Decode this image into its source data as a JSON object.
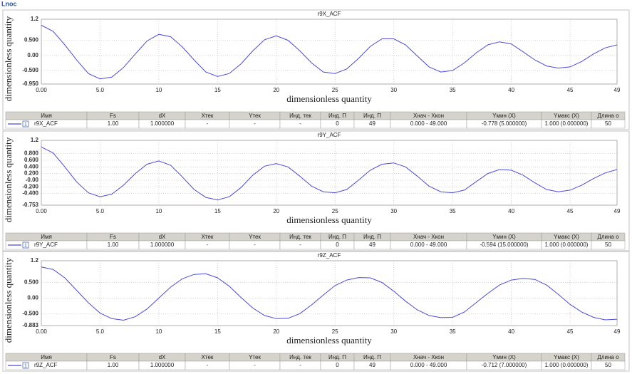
{
  "window_title": "Lnoc",
  "panels": [
    {
      "chart": {
        "type": "line",
        "title": "r9X_ACF",
        "xlabel": "dimensionless quantity",
        "ylabel": "dimensionless quantity",
        "color": "#4b4bd6",
        "grid": true,
        "x": [
          0,
          1,
          2,
          3,
          4,
          5,
          6,
          7,
          8,
          9,
          10,
          11,
          12,
          13,
          14,
          15,
          16,
          17,
          18,
          19,
          20,
          21,
          22,
          23,
          24,
          25,
          26,
          27,
          28,
          29,
          30,
          31,
          32,
          33,
          34,
          35,
          36,
          37,
          38,
          39,
          40,
          41,
          42,
          43,
          44,
          45,
          46,
          47,
          48,
          49
        ],
        "values": [
          1.0,
          0.8,
          0.35,
          -0.15,
          -0.6,
          -0.778,
          -0.72,
          -0.4,
          0.05,
          0.48,
          0.7,
          0.62,
          0.28,
          -0.15,
          -0.55,
          -0.7,
          -0.6,
          -0.28,
          0.15,
          0.52,
          0.65,
          0.5,
          0.15,
          -0.25,
          -0.55,
          -0.6,
          -0.45,
          -0.1,
          0.3,
          0.55,
          0.55,
          0.35,
          -0.02,
          -0.38,
          -0.55,
          -0.5,
          -0.25,
          0.08,
          0.35,
          0.45,
          0.38,
          0.12,
          -0.15,
          -0.35,
          -0.42,
          -0.38,
          -0.2,
          0.05,
          0.25,
          0.35
        ],
        "xlim": [
          0,
          49
        ],
        "ylim": [
          -0.95,
          1.2
        ],
        "xticks": [
          {
            "value": 0,
            "label": "0.00"
          },
          {
            "value": 5,
            "label": "5.0"
          },
          10,
          15,
          20,
          25,
          30,
          35,
          40,
          45,
          49
        ],
        "yticks": [
          1.2,
          {
            "value": 0.5,
            "label": "0.500"
          },
          {
            "value": 0,
            "label": "0.00"
          },
          {
            "value": -0.5,
            "label": "-0.500"
          },
          {
            "value": -0.95,
            "label": "-0.950"
          }
        ]
      },
      "table": {
        "headers": [
          "Имя",
          "Fs",
          "dX",
          "Xтек",
          "Yтек",
          "Инд. тек",
          "Инд. П",
          "Инд. П",
          "Xнач - Xкон",
          "Yмин (X)",
          "Yмакс (X)",
          "Длина о"
        ],
        "badge": "1",
        "row": [
          "r9X_ACF",
          "1.00",
          "1.000000",
          "-",
          "-",
          "-",
          "0",
          "49",
          "0.000 - 49.000",
          "-0.778 (5.000000)",
          "1.000 (0.000000)",
          "50"
        ]
      }
    },
    {
      "chart": {
        "type": "line",
        "title": "r9Y_ACF",
        "xlabel": "dimensionless quantity",
        "ylabel": "dimensionless quantity",
        "color": "#4b4bd6",
        "grid": true,
        "x": [
          0,
          1,
          2,
          3,
          4,
          5,
          6,
          7,
          8,
          9,
          10,
          11,
          12,
          13,
          14,
          15,
          16,
          17,
          18,
          19,
          20,
          21,
          22,
          23,
          24,
          25,
          26,
          27,
          28,
          29,
          30,
          31,
          32,
          33,
          34,
          35,
          36,
          37,
          38,
          39,
          40,
          41,
          42,
          43,
          44,
          45,
          46,
          47,
          48,
          49
        ],
        "values": [
          1.0,
          0.82,
          0.4,
          -0.05,
          -0.38,
          -0.5,
          -0.42,
          -0.15,
          0.2,
          0.48,
          0.58,
          0.45,
          0.1,
          -0.28,
          -0.52,
          -0.594,
          -0.5,
          -0.22,
          0.15,
          0.42,
          0.5,
          0.4,
          0.12,
          -0.18,
          -0.35,
          -0.38,
          -0.28,
          0.0,
          0.3,
          0.48,
          0.52,
          0.4,
          0.12,
          -0.18,
          -0.35,
          -0.38,
          -0.3,
          -0.05,
          0.2,
          0.32,
          0.3,
          0.15,
          -0.08,
          -0.28,
          -0.35,
          -0.3,
          -0.15,
          0.05,
          0.22,
          0.32
        ],
        "xlim": [
          0,
          49
        ],
        "ylim": [
          -0.753,
          1.2
        ],
        "xticks": [
          {
            "value": 0,
            "label": "0.00"
          },
          {
            "value": 5,
            "label": "5.0"
          },
          10,
          15,
          20,
          25,
          30,
          35,
          40,
          45,
          49
        ],
        "yticks": [
          1.2,
          {
            "value": 0.8,
            "label": "0.800"
          },
          {
            "value": 0.6,
            "label": "0.600"
          },
          {
            "value": 0.4,
            "label": "0.400"
          },
          {
            "value": 0.2,
            "label": "0.200"
          },
          {
            "value": 0,
            "label": "-0.00"
          },
          {
            "value": -0.2,
            "label": "-0.200"
          },
          {
            "value": -0.4,
            "label": "-0.400"
          },
          {
            "value": -0.753,
            "label": "-0.753"
          }
        ]
      },
      "table": {
        "headers": [
          "Имя",
          "Fs",
          "dX",
          "Xтек",
          "Yтек",
          "Инд. тек",
          "Инд. П",
          "Инд. П",
          "Xнач - Xкон",
          "Yмин (X)",
          "Yмакс (X)",
          "Длина о"
        ],
        "badge": "1",
        "row": [
          "r9Y_ACF",
          "1.00",
          "1.000000",
          "-",
          "-",
          "-",
          "0",
          "49",
          "0.000 - 49.000",
          "-0.594 (15.000000)",
          "1.000 (0.000000)",
          "50"
        ]
      }
    },
    {
      "chart": {
        "type": "line",
        "title": "r9Z_ACF",
        "xlabel": "dimensionless quantity",
        "ylabel": "dimensionless quantity",
        "color": "#4b4bd6",
        "grid": true,
        "x": [
          0,
          1,
          2,
          3,
          4,
          5,
          6,
          7,
          8,
          9,
          10,
          11,
          12,
          13,
          14,
          15,
          16,
          17,
          18,
          19,
          20,
          21,
          22,
          23,
          24,
          25,
          26,
          27,
          28,
          29,
          30,
          31,
          32,
          33,
          34,
          35,
          36,
          37,
          38,
          39,
          40,
          41,
          42,
          43,
          44,
          45,
          46,
          47,
          48,
          49
        ],
        "values": [
          1.0,
          0.92,
          0.65,
          0.25,
          -0.15,
          -0.48,
          -0.66,
          -0.712,
          -0.6,
          -0.35,
          0.0,
          0.35,
          0.62,
          0.76,
          0.78,
          0.65,
          0.38,
          0.02,
          -0.32,
          -0.56,
          -0.66,
          -0.65,
          -0.5,
          -0.22,
          0.1,
          0.4,
          0.58,
          0.66,
          0.65,
          0.5,
          0.22,
          -0.1,
          -0.38,
          -0.56,
          -0.63,
          -0.62,
          -0.45,
          -0.15,
          0.15,
          0.42,
          0.58,
          0.63,
          0.6,
          0.42,
          0.12,
          -0.2,
          -0.45,
          -0.62,
          -0.7,
          -0.68
        ],
        "xlim": [
          0,
          49
        ],
        "ylim": [
          -0.883,
          1.2
        ],
        "xticks": [
          {
            "value": 0,
            "label": "0.00"
          },
          {
            "value": 5,
            "label": "5.0"
          },
          10,
          15,
          20,
          25,
          30,
          35,
          40,
          45,
          49
        ],
        "yticks": [
          1.2,
          {
            "value": 0.5,
            "label": "0.500"
          },
          {
            "value": 0,
            "label": "0.00"
          },
          {
            "value": -0.5,
            "label": "-0.500"
          },
          {
            "value": -0.883,
            "label": "-0.883"
          }
        ]
      },
      "table": {
        "headers": [
          "Имя",
          "Fs",
          "dX",
          "Xтек",
          "Yтек",
          "Инд. тек",
          "Инд. П",
          "Инд. П",
          "Xнач - Xкон",
          "Yмин (X)",
          "Yмакс (X)",
          "Длина о"
        ],
        "badge": "1",
        "row": [
          "r9Z_ACF",
          "1.00",
          "1.000000",
          "-",
          "-",
          "-",
          "0",
          "49",
          "0.000 - 49.000",
          "-0.712 (7.000000)",
          "1.000 (0.000000)",
          "50"
        ]
      }
    }
  ]
}
